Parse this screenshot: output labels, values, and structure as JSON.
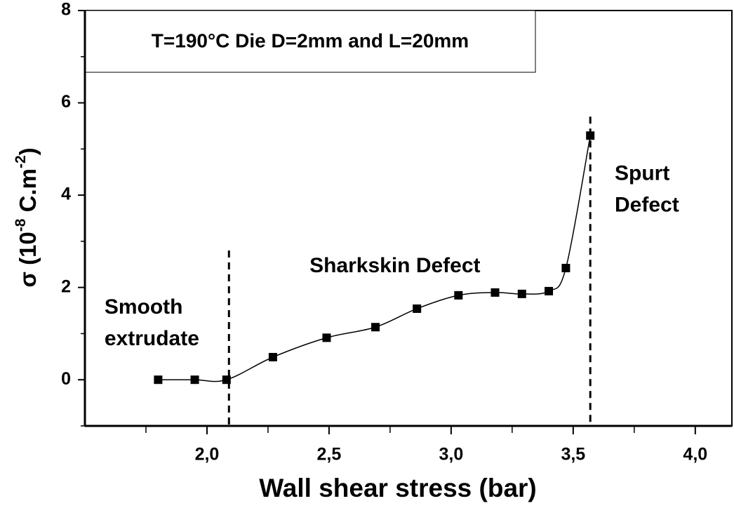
{
  "chart_data": {
    "type": "line",
    "title": "T=190°C Die D=2mm and L=20mm",
    "x_label": "Wall shear stress (bar)",
    "y_label": [
      "σ (10",
      "-8",
      " C.m",
      "-2",
      ")"
    ],
    "x": [
      1.8,
      1.95,
      2.08,
      2.27,
      2.49,
      2.69,
      2.86,
      3.03,
      3.18,
      3.29,
      3.4,
      3.47,
      3.57
    ],
    "series": [
      {
        "color": "#000000",
        "values": [
          0,
          0,
          0,
          0.49,
          0.91,
          1.14,
          1.54,
          1.83,
          1.89,
          1.86,
          1.92,
          2.42,
          5.29
        ]
      }
    ],
    "xlim": [
      1.5,
      4.15
    ],
    "ylim": [
      -1,
      8
    ],
    "xticks": [
      {
        "value": 2.0,
        "label": "2,0"
      },
      {
        "value": 2.5,
        "label": "2,5"
      },
      {
        "value": 3.0,
        "label": "3,0"
      },
      {
        "value": 3.5,
        "label": "3,5"
      },
      {
        "value": 4.0,
        "label": "4,0"
      }
    ],
    "xminor": [
      1.75,
      2.25,
      2.75,
      3.25,
      3.75
    ],
    "yticks": [
      0,
      2,
      4,
      6,
      8
    ],
    "yminor": [
      -1,
      1,
      3,
      5,
      7
    ],
    "vlines": [
      {
        "x": 2.09,
        "from": 2.8
      },
      {
        "x": 3.57,
        "from": 5.7
      }
    ],
    "annotations": [
      {
        "lines": [
          "Smooth",
          "extrudate"
        ],
        "x": 1.58,
        "y": 1.55
      },
      {
        "lines": [
          "Sharkskin Defect"
        ],
        "x": 2.42,
        "y": 2.45
      },
      {
        "lines": [
          "Spurt",
          "Defect"
        ],
        "x": 3.67,
        "y": 4.45
      }
    ]
  }
}
